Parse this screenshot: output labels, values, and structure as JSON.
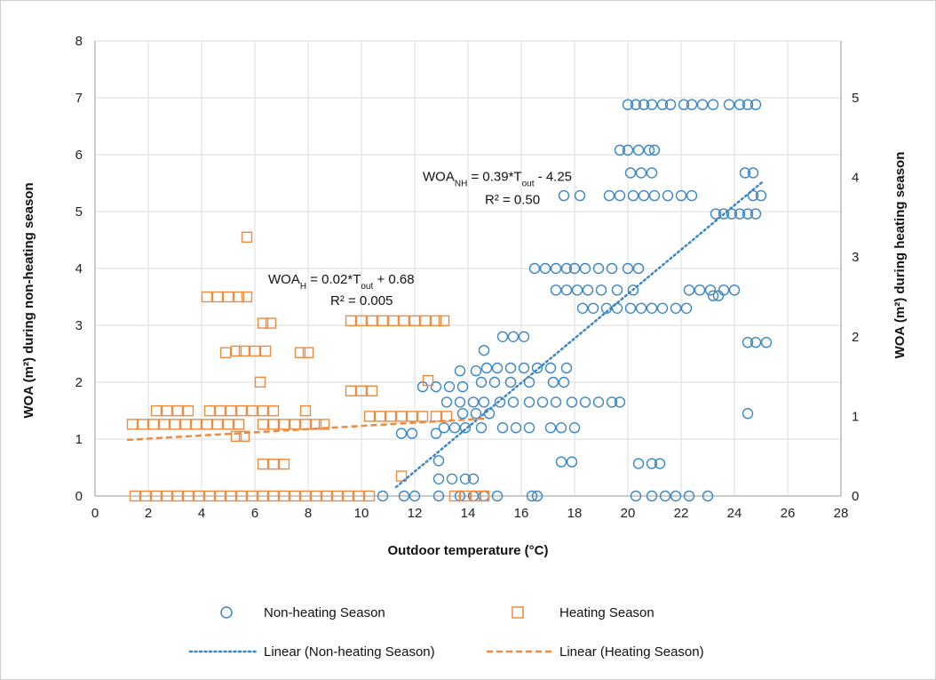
{
  "chart_data": {
    "type": "scatter",
    "xlabel": "Outdoor temperature (°C)",
    "ylabel_left": "WOA (m²) during non-heating season",
    "ylabel_right": "WOA (m²) during heating season",
    "xlim": [
      0,
      28
    ],
    "ylim_left": [
      0,
      8
    ],
    "ylim_right": [
      0,
      5.714
    ],
    "x_ticks": [
      0,
      2,
      4,
      6,
      8,
      10,
      12,
      14,
      16,
      18,
      20,
      22,
      24,
      26,
      28
    ],
    "y_ticks_left": [
      0,
      1,
      2,
      3,
      4,
      5,
      6,
      7,
      8
    ],
    "y_ticks_right": [
      0,
      1,
      2,
      3,
      4,
      5
    ],
    "grid": true,
    "legend_position": "bottom",
    "colors": {
      "non_heating": "#3a86c8",
      "heating": "#ef8a3e"
    },
    "series": [
      {
        "name": "Non-heating Season",
        "axis": "left",
        "marker": "circle",
        "points": [
          [
            20.0,
            6.88
          ],
          [
            20.3,
            6.88
          ],
          [
            20.6,
            6.88
          ],
          [
            20.9,
            6.88
          ],
          [
            21.3,
            6.88
          ],
          [
            21.6,
            6.88
          ],
          [
            22.1,
            6.88
          ],
          [
            22.4,
            6.88
          ],
          [
            22.8,
            6.88
          ],
          [
            23.2,
            6.88
          ],
          [
            23.8,
            6.88
          ],
          [
            24.2,
            6.88
          ],
          [
            24.5,
            6.88
          ],
          [
            24.8,
            6.88
          ],
          [
            19.7,
            6.08
          ],
          [
            20.0,
            6.08
          ],
          [
            20.4,
            6.08
          ],
          [
            20.8,
            6.08
          ],
          [
            21.0,
            6.08
          ],
          [
            20.1,
            5.68
          ],
          [
            20.5,
            5.68
          ],
          [
            20.9,
            5.68
          ],
          [
            24.4,
            5.68
          ],
          [
            24.7,
            5.68
          ],
          [
            17.6,
            5.28
          ],
          [
            18.2,
            5.28
          ],
          [
            19.3,
            5.28
          ],
          [
            19.7,
            5.28
          ],
          [
            20.2,
            5.28
          ],
          [
            20.6,
            5.28
          ],
          [
            21.0,
            5.28
          ],
          [
            21.5,
            5.28
          ],
          [
            22.0,
            5.28
          ],
          [
            22.4,
            5.28
          ],
          [
            24.7,
            5.28
          ],
          [
            25.0,
            5.28
          ],
          [
            23.3,
            4.96
          ],
          [
            23.6,
            4.96
          ],
          [
            23.9,
            4.96
          ],
          [
            24.2,
            4.96
          ],
          [
            24.5,
            4.96
          ],
          [
            24.8,
            4.96
          ],
          [
            16.5,
            4.0
          ],
          [
            16.9,
            4.0
          ],
          [
            17.3,
            4.0
          ],
          [
            17.7,
            4.0
          ],
          [
            18.0,
            4.0
          ],
          [
            18.4,
            4.0
          ],
          [
            18.9,
            4.0
          ],
          [
            19.4,
            4.0
          ],
          [
            20.0,
            4.0
          ],
          [
            20.4,
            4.0
          ],
          [
            17.3,
            3.62
          ],
          [
            17.7,
            3.62
          ],
          [
            18.1,
            3.62
          ],
          [
            18.5,
            3.62
          ],
          [
            19.0,
            3.62
          ],
          [
            19.6,
            3.62
          ],
          [
            20.2,
            3.62
          ],
          [
            22.3,
            3.62
          ],
          [
            22.7,
            3.62
          ],
          [
            23.1,
            3.62
          ],
          [
            23.6,
            3.62
          ],
          [
            24.0,
            3.62
          ],
          [
            23.2,
            3.52
          ],
          [
            23.4,
            3.52
          ],
          [
            18.3,
            3.3
          ],
          [
            18.7,
            3.3
          ],
          [
            19.2,
            3.3
          ],
          [
            19.6,
            3.3
          ],
          [
            20.1,
            3.3
          ],
          [
            20.5,
            3.3
          ],
          [
            20.9,
            3.3
          ],
          [
            21.3,
            3.3
          ],
          [
            21.8,
            3.3
          ],
          [
            22.2,
            3.3
          ],
          [
            24.5,
            2.7
          ],
          [
            24.8,
            2.7
          ],
          [
            25.2,
            2.7
          ],
          [
            15.3,
            2.8
          ],
          [
            15.7,
            2.8
          ],
          [
            16.1,
            2.8
          ],
          [
            14.6,
            2.56
          ],
          [
            13.7,
            2.2
          ],
          [
            14.3,
            2.2
          ],
          [
            14.7,
            2.25
          ],
          [
            15.1,
            2.25
          ],
          [
            15.6,
            2.25
          ],
          [
            16.1,
            2.25
          ],
          [
            16.6,
            2.25
          ],
          [
            17.1,
            2.25
          ],
          [
            17.7,
            2.25
          ],
          [
            12.3,
            1.92
          ],
          [
            12.8,
            1.92
          ],
          [
            13.3,
            1.92
          ],
          [
            13.8,
            1.92
          ],
          [
            14.5,
            2.0
          ],
          [
            15.0,
            2.0
          ],
          [
            15.6,
            2.0
          ],
          [
            16.3,
            2.0
          ],
          [
            17.2,
            2.0
          ],
          [
            17.6,
            2.0
          ],
          [
            13.2,
            1.65
          ],
          [
            13.7,
            1.65
          ],
          [
            14.2,
            1.65
          ],
          [
            14.6,
            1.65
          ],
          [
            15.2,
            1.65
          ],
          [
            15.7,
            1.65
          ],
          [
            16.3,
            1.65
          ],
          [
            16.8,
            1.65
          ],
          [
            17.3,
            1.65
          ],
          [
            17.9,
            1.65
          ],
          [
            18.4,
            1.65
          ],
          [
            18.9,
            1.65
          ],
          [
            19.4,
            1.65
          ],
          [
            19.7,
            1.65
          ],
          [
            13.8,
            1.45
          ],
          [
            14.3,
            1.45
          ],
          [
            14.8,
            1.45
          ],
          [
            11.5,
            1.1
          ],
          [
            11.9,
            1.1
          ],
          [
            12.8,
            1.1
          ],
          [
            13.1,
            1.2
          ],
          [
            13.5,
            1.2
          ],
          [
            13.9,
            1.2
          ],
          [
            14.5,
            1.2
          ],
          [
            15.3,
            1.2
          ],
          [
            15.8,
            1.2
          ],
          [
            16.3,
            1.2
          ],
          [
            17.1,
            1.2
          ],
          [
            17.5,
            1.2
          ],
          [
            18.0,
            1.2
          ],
          [
            17.5,
            0.6
          ],
          [
            17.9,
            0.6
          ],
          [
            12.9,
            0.62
          ],
          [
            12.9,
            0.3
          ],
          [
            13.4,
            0.3
          ],
          [
            13.9,
            0.3
          ],
          [
            14.2,
            0.3
          ],
          [
            20.4,
            0.57
          ],
          [
            20.9,
            0.57
          ],
          [
            21.2,
            0.57
          ],
          [
            24.5,
            1.45
          ],
          [
            10.8,
            0.0
          ],
          [
            11.6,
            0.0
          ],
          [
            12.0,
            0.0
          ],
          [
            12.9,
            0.0
          ],
          [
            13.7,
            0.0
          ],
          [
            14.2,
            0.0
          ],
          [
            14.6,
            0.0
          ],
          [
            15.1,
            0.0
          ],
          [
            16.4,
            0.0
          ],
          [
            16.6,
            0.0
          ],
          [
            20.3,
            0.0
          ],
          [
            20.9,
            0.0
          ],
          [
            21.4,
            0.0
          ],
          [
            21.8,
            0.0
          ],
          [
            22.3,
            0.0
          ],
          [
            23.0,
            0.0
          ]
        ]
      },
      {
        "name": "Heating Season",
        "axis": "right",
        "marker": "square",
        "points": [
          [
            5.7,
            3.25
          ],
          [
            4.2,
            2.5
          ],
          [
            4.6,
            2.5
          ],
          [
            5.0,
            2.5
          ],
          [
            5.4,
            2.5
          ],
          [
            5.7,
            2.5
          ],
          [
            6.3,
            2.17
          ],
          [
            6.6,
            2.17
          ],
          [
            9.6,
            2.2
          ],
          [
            10.0,
            2.2
          ],
          [
            10.4,
            2.2
          ],
          [
            10.8,
            2.2
          ],
          [
            11.2,
            2.2
          ],
          [
            11.6,
            2.2
          ],
          [
            12.0,
            2.2
          ],
          [
            12.4,
            2.2
          ],
          [
            12.8,
            2.2
          ],
          [
            13.1,
            2.2
          ],
          [
            4.9,
            1.8
          ],
          [
            5.3,
            1.82
          ],
          [
            5.6,
            1.82
          ],
          [
            6.0,
            1.82
          ],
          [
            6.4,
            1.82
          ],
          [
            7.7,
            1.8
          ],
          [
            8.0,
            1.8
          ],
          [
            6.2,
            1.43
          ],
          [
            12.5,
            1.45
          ],
          [
            9.6,
            1.32
          ],
          [
            10.0,
            1.32
          ],
          [
            10.4,
            1.32
          ],
          [
            2.3,
            1.07
          ],
          [
            2.7,
            1.07
          ],
          [
            3.1,
            1.07
          ],
          [
            3.5,
            1.07
          ],
          [
            4.3,
            1.07
          ],
          [
            4.7,
            1.07
          ],
          [
            5.1,
            1.07
          ],
          [
            5.5,
            1.07
          ],
          [
            5.9,
            1.07
          ],
          [
            6.3,
            1.07
          ],
          [
            6.7,
            1.07
          ],
          [
            7.9,
            1.07
          ],
          [
            10.3,
            1.0
          ],
          [
            10.7,
            1.0
          ],
          [
            11.1,
            1.0
          ],
          [
            11.5,
            1.0
          ],
          [
            11.9,
            1.0
          ],
          [
            12.3,
            1.0
          ],
          [
            12.8,
            1.0
          ],
          [
            13.2,
            1.0
          ],
          [
            1.4,
            0.9
          ],
          [
            1.8,
            0.9
          ],
          [
            2.2,
            0.9
          ],
          [
            2.6,
            0.9
          ],
          [
            3.0,
            0.9
          ],
          [
            3.4,
            0.9
          ],
          [
            3.8,
            0.9
          ],
          [
            4.2,
            0.9
          ],
          [
            4.6,
            0.9
          ],
          [
            5.0,
            0.9
          ],
          [
            5.4,
            0.9
          ],
          [
            6.3,
            0.9
          ],
          [
            6.7,
            0.9
          ],
          [
            7.1,
            0.9
          ],
          [
            7.5,
            0.9
          ],
          [
            7.9,
            0.9
          ],
          [
            8.3,
            0.9
          ],
          [
            8.6,
            0.9
          ],
          [
            5.3,
            0.75
          ],
          [
            5.6,
            0.75
          ],
          [
            6.3,
            0.4
          ],
          [
            6.7,
            0.4
          ],
          [
            7.1,
            0.4
          ],
          [
            11.5,
            0.25
          ],
          [
            1.5,
            0.0
          ],
          [
            1.9,
            0.0
          ],
          [
            2.3,
            0.0
          ],
          [
            2.7,
            0.0
          ],
          [
            3.1,
            0.0
          ],
          [
            3.5,
            0.0
          ],
          [
            3.9,
            0.0
          ],
          [
            4.3,
            0.0
          ],
          [
            4.7,
            0.0
          ],
          [
            5.1,
            0.0
          ],
          [
            5.5,
            0.0
          ],
          [
            5.9,
            0.0
          ],
          [
            6.3,
            0.0
          ],
          [
            6.7,
            0.0
          ],
          [
            7.1,
            0.0
          ],
          [
            7.5,
            0.0
          ],
          [
            7.9,
            0.0
          ],
          [
            8.3,
            0.0
          ],
          [
            8.7,
            0.0
          ],
          [
            9.1,
            0.0
          ],
          [
            9.5,
            0.0
          ],
          [
            9.9,
            0.0
          ],
          [
            10.3,
            0.0
          ],
          [
            13.5,
            0.0
          ],
          [
            13.9,
            0.0
          ],
          [
            14.3,
            0.0
          ],
          [
            14.6,
            0.0
          ]
        ]
      }
    ],
    "trendlines": [
      {
        "name": "Linear (Non-heating Season)",
        "axis": "left",
        "x_range": [
          11.3,
          25.1
        ],
        "slope": 0.39,
        "intercept": -4.25,
        "style": "dotted"
      },
      {
        "name": "Linear (Heating Season)",
        "axis": "right",
        "x_range": [
          1.2,
          14.7
        ],
        "slope": 0.02,
        "intercept": 0.68,
        "style": "dashed"
      }
    ],
    "annotations": [
      {
        "id": "nh",
        "eq_prefix": "WOA",
        "eq_prefix_sub": "NH",
        "eq_mid": " = 0.39*T",
        "eq_mid_sub": "out",
        "eq_suffix": " - 4.25",
        "r2": "R² = 0.50",
        "at_x": 12.3,
        "at_y": 5.6
      },
      {
        "id": "h",
        "eq_prefix": "WOA",
        "eq_prefix_sub": "H",
        "eq_mid": " = 0.02*T",
        "eq_mid_sub": "out",
        "eq_suffix": " + 0.68",
        "r2": "R² = 0.005",
        "at_x": 6.5,
        "at_y": 3.8
      }
    ],
    "legend": [
      {
        "label": "Non-heating Season",
        "kind": "circle"
      },
      {
        "label": "Heating Season",
        "kind": "square"
      },
      {
        "label": "Linear (Non-heating Season)",
        "kind": "dotted"
      },
      {
        "label": "Linear (Heating Season)",
        "kind": "dashed"
      }
    ]
  }
}
